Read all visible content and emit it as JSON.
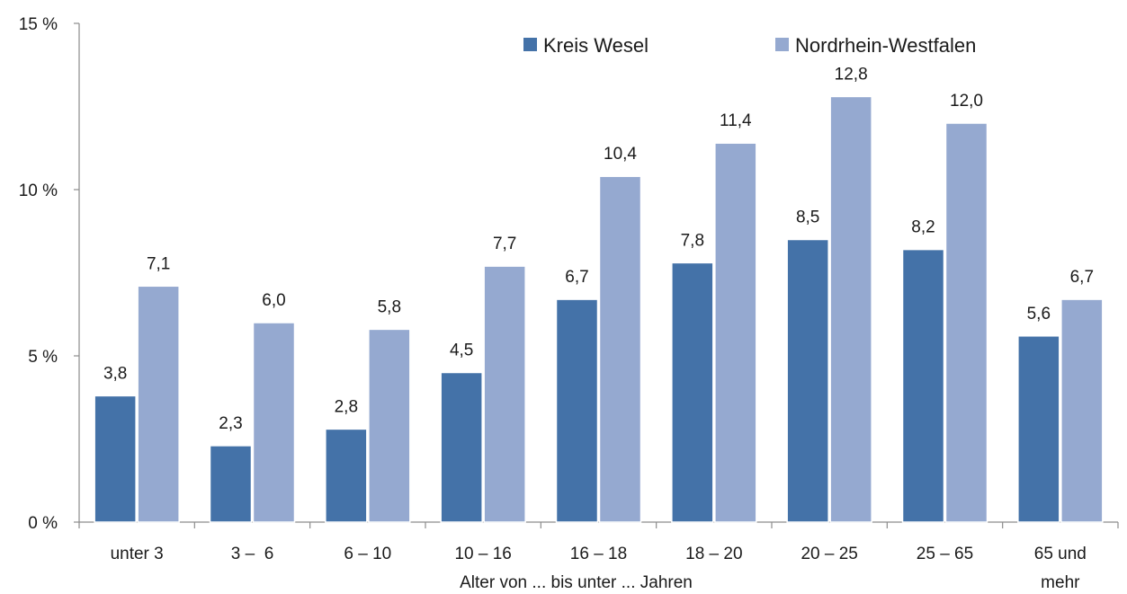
{
  "chart_data": {
    "type": "bar",
    "title": "",
    "xlabel": "Alter von ... bis unter ... Jahren",
    "ylabel": "",
    "ylim": [
      0,
      15
    ],
    "yticks": [
      0,
      5,
      10,
      15
    ],
    "ytick_labels": [
      "0 %",
      "5 %",
      "10 %",
      "15 %"
    ],
    "grid": false,
    "legend_position": "top-right",
    "categories": [
      "unter 3",
      "3 –  6",
      "6 – 10",
      "10 – 16",
      "16 – 18",
      "18 – 20",
      "20 – 25",
      "25 – 65",
      "65 und mehr"
    ],
    "series": [
      {
        "name": "Kreis Wesel",
        "color": "#4472a8",
        "values": [
          3.8,
          2.3,
          2.8,
          4.5,
          6.7,
          7.8,
          8.5,
          8.2,
          5.6
        ],
        "labels": [
          "3,8",
          "2,3",
          "2,8",
          "4,5",
          "6,7",
          "7,8",
          "8,5",
          "8,2",
          "5,6"
        ]
      },
      {
        "name": "Nordrhein-Westfalen",
        "color": "#95a9d0",
        "values": [
          7.1,
          6.0,
          5.8,
          7.7,
          10.4,
          11.4,
          12.8,
          12.0,
          6.7
        ],
        "labels": [
          "7,1",
          "6,0",
          "5,8",
          "7,7",
          "10,4",
          "11,4",
          "12,8",
          "12,0",
          "6,7"
        ]
      }
    ]
  }
}
